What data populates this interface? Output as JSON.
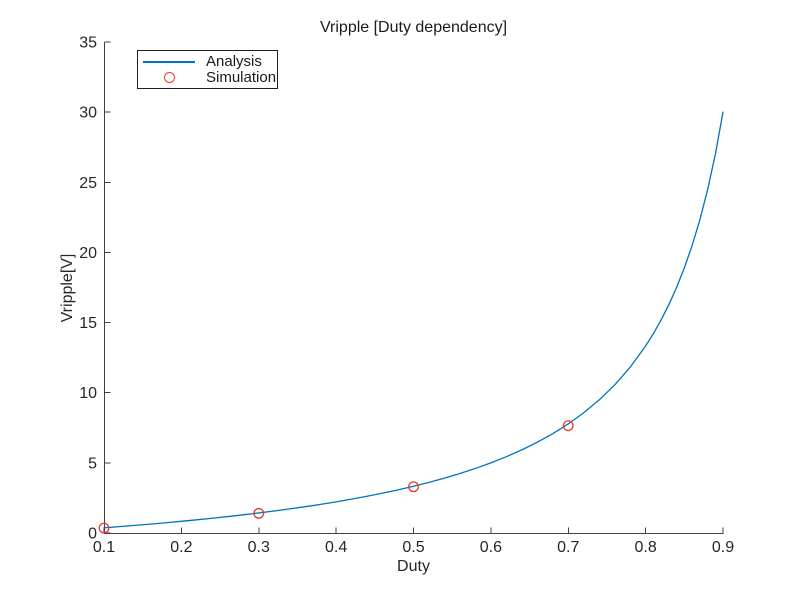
{
  "figure": {
    "background": "#ffffff"
  },
  "chart_data": {
    "type": "line",
    "title": "Vripple [Duty dependency]",
    "xlabel": "Duty",
    "ylabel": "Vripple[V]",
    "xlim": [
      0.1,
      0.9
    ],
    "ylim": [
      0,
      35
    ],
    "x_ticks": [
      0.1,
      0.2,
      0.3,
      0.4,
      0.5,
      0.6,
      0.7,
      0.8,
      0.9
    ],
    "y_ticks": [
      0,
      5,
      10,
      15,
      20,
      25,
      30,
      35
    ],
    "grid": false,
    "legend_position": "top-left",
    "axis_color": "#404040",
    "tick_label_color": "#262626",
    "series": [
      {
        "name": "Analysis",
        "type": "line",
        "color": "#0072bd",
        "x": [
          0.1,
          0.12,
          0.14,
          0.16,
          0.18,
          0.2,
          0.22,
          0.24,
          0.26,
          0.28,
          0.3,
          0.32,
          0.34,
          0.36,
          0.38,
          0.4,
          0.42,
          0.44,
          0.46,
          0.48,
          0.5,
          0.52,
          0.54,
          0.56,
          0.58,
          0.6,
          0.62,
          0.64,
          0.66,
          0.68,
          0.7,
          0.72,
          0.74,
          0.76,
          0.78,
          0.8,
          0.81,
          0.82,
          0.83,
          0.84,
          0.85,
          0.86,
          0.87,
          0.88,
          0.89,
          0.9
        ],
        "y": [
          0.37,
          0.455,
          0.543,
          0.635,
          0.732,
          0.833,
          0.94,
          1.053,
          1.171,
          1.296,
          1.429,
          1.569,
          1.717,
          1.875,
          2.043,
          2.222,
          2.414,
          2.619,
          2.84,
          3.077,
          3.333,
          3.611,
          3.913,
          4.242,
          4.603,
          5.0,
          5.439,
          5.926,
          6.471,
          7.083,
          7.778,
          8.571,
          9.487,
          10.556,
          11.818,
          13.333,
          14.211,
          15.185,
          16.275,
          17.5,
          18.889,
          20.476,
          22.308,
          24.444,
          26.97,
          30.0
        ]
      },
      {
        "name": "Simulation",
        "type": "scatter",
        "marker": "open-circle",
        "color": "#e8392b",
        "x": [
          0.1,
          0.3,
          0.5,
          0.7
        ],
        "y": [
          0.35,
          1.4,
          3.3,
          7.65
        ]
      }
    ]
  }
}
